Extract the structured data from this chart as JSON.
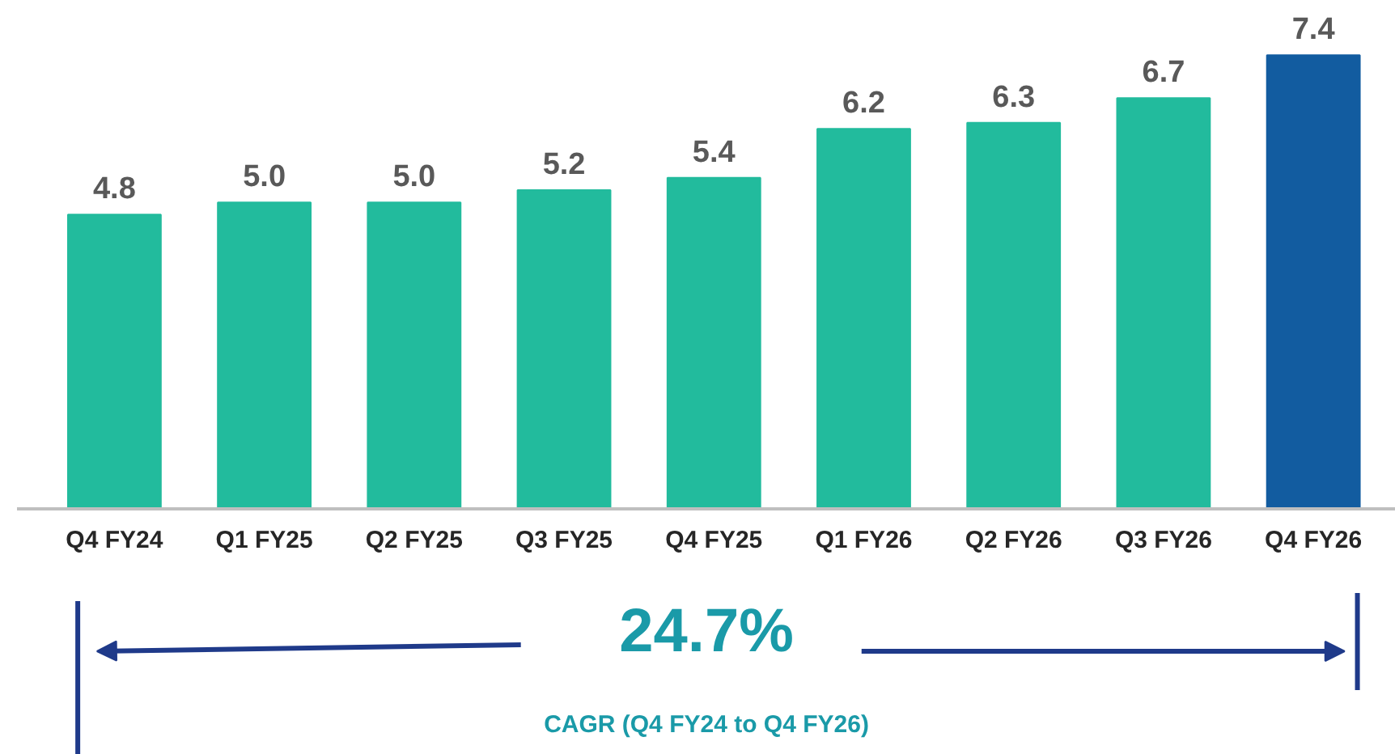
{
  "chart_data": {
    "type": "bar",
    "categories": [
      "Q4 FY24",
      "Q1 FY25",
      "Q2 FY25",
      "Q3 FY25",
      "Q4 FY25",
      "Q1 FY26",
      "Q2 FY26",
      "Q3 FY26",
      "Q4 FY26"
    ],
    "values": [
      4.8,
      5.0,
      5.0,
      5.2,
      5.4,
      6.2,
      6.3,
      6.7,
      7.4
    ],
    "colors": [
      "#22bb9d",
      "#22bb9d",
      "#22bb9d",
      "#22bb9d",
      "#22bb9d",
      "#22bb9d",
      "#22bb9d",
      "#22bb9d",
      "#125ca0"
    ],
    "value_labels": [
      "4.8",
      "5.0",
      "5.0",
      "5.2",
      "5.4",
      "6.2",
      "6.3",
      "6.7",
      "7.4"
    ],
    "grid": false,
    "annotations": [
      "24.7%",
      "CAGR (Q4 FY24 to Q4 FY26)"
    ]
  }
}
